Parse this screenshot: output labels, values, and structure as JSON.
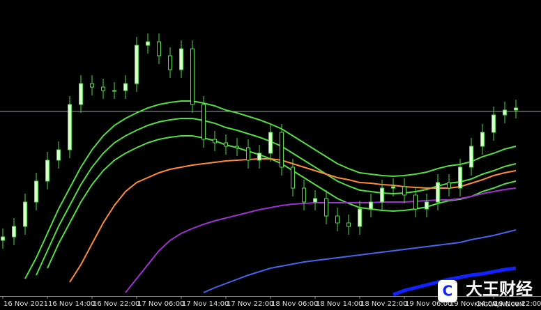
{
  "chart_data": {
    "type": "candlestick",
    "categories": [
      "16 Nov 2021",
      null,
      null,
      null,
      "16 Nov 14:00",
      null,
      null,
      null,
      "16 Nov 22:00",
      null,
      null,
      null,
      "17 Nov 06:00",
      null,
      null,
      null,
      "17 Nov 14:00",
      null,
      null,
      null,
      "17 Nov 22:00",
      null,
      null,
      null,
      "18 Nov 06:00",
      null,
      null,
      null,
      "18 Nov 14:00",
      null,
      null,
      null,
      "18 Nov 22:00",
      null,
      null,
      null,
      "19 Nov 06:00",
      null,
      null,
      null,
      "19 Nov 14:00",
      null,
      null,
      null,
      "19 Nov 22:00",
      null,
      null
    ],
    "open": [
      80,
      85,
      100,
      135,
      165,
      195,
      210,
      275,
      305,
      300,
      295,
      295,
      305,
      360,
      365,
      345,
      325,
      355,
      275,
      225,
      220,
      215,
      213,
      195,
      205,
      235,
      185,
      155,
      135,
      140,
      115,
      105,
      100,
      125,
      135,
      155,
      157,
      145,
      125,
      135,
      163,
      155,
      185,
      215,
      235,
      260,
      267
    ],
    "high": [
      97,
      112,
      147,
      177,
      207,
      222,
      287,
      317,
      317,
      312,
      307,
      317,
      372,
      377,
      377,
      357,
      367,
      367,
      287,
      237,
      232,
      227,
      225,
      217,
      247,
      247,
      197,
      167,
      152,
      152,
      127,
      117,
      137,
      147,
      167,
      169,
      169,
      157,
      147,
      175,
      175,
      197,
      227,
      247,
      272,
      279,
      282
    ],
    "low": [
      68,
      73,
      88,
      123,
      153,
      183,
      198,
      263,
      288,
      283,
      283,
      283,
      293,
      348,
      333,
      313,
      313,
      263,
      213,
      208,
      203,
      201,
      183,
      183,
      193,
      173,
      143,
      123,
      123,
      103,
      93,
      88,
      88,
      113,
      123,
      143,
      133,
      113,
      113,
      123,
      143,
      143,
      173,
      203,
      223,
      248,
      255
    ],
    "close": [
      85,
      100,
      135,
      165,
      195,
      210,
      275,
      305,
      300,
      295,
      295,
      305,
      360,
      365,
      345,
      325,
      355,
      275,
      225,
      220,
      215,
      213,
      195,
      205,
      235,
      185,
      155,
      135,
      140,
      115,
      105,
      100,
      125,
      135,
      155,
      157,
      145,
      125,
      135,
      163,
      155,
      185,
      215,
      235,
      260,
      267,
      270
    ],
    "up_color": "#d8ffd0",
    "down_color": "#000000",
    "wick_color": "#55dd44",
    "series": [
      {
        "color": "#55dd44",
        "width": 2,
        "values": [
          null,
          null,
          25,
          55,
          90,
          125,
          155,
          185,
          210,
          230,
          245,
          255,
          263,
          270,
          275,
          278,
          280,
          280,
          277,
          273,
          267,
          263,
          258,
          253,
          247,
          240,
          230,
          220,
          210,
          200,
          190,
          183,
          177,
          175,
          173,
          172,
          173,
          175,
          178,
          183,
          187,
          189,
          193,
          200,
          205,
          211,
          215
        ]
      },
      {
        "color": "#55dd44",
        "width": 2,
        "values": [
          null,
          null,
          null,
          30,
          65,
          100,
          130,
          160,
          185,
          205,
          220,
          230,
          238,
          245,
          250,
          253,
          255,
          255,
          252,
          248,
          242,
          238,
          233,
          228,
          222,
          215,
          205,
          195,
          185,
          175,
          165,
          158,
          152,
          150,
          148,
          147,
          148,
          150,
          153,
          158,
          162,
          164,
          168,
          175,
          180,
          186,
          190
        ]
      },
      {
        "color": "#55dd44",
        "width": 2,
        "values": [
          null,
          null,
          null,
          null,
          40,
          75,
          105,
          135,
          160,
          180,
          195,
          205,
          213,
          220,
          225,
          228,
          230,
          230,
          227,
          223,
          217,
          213,
          208,
          203,
          197,
          190,
          180,
          170,
          160,
          150,
          140,
          133,
          127,
          125,
          123,
          122,
          123,
          125,
          128,
          133,
          137,
          139,
          143,
          150,
          155,
          161,
          165
        ]
      },
      {
        "color": "#ff8c3a",
        "width": 2,
        "values": [
          null,
          null,
          null,
          null,
          null,
          null,
          20,
          45,
          75,
          105,
          130,
          150,
          163,
          170,
          177,
          182,
          185,
          188,
          190,
          192,
          194,
          195,
          196,
          197,
          197,
          195,
          190,
          185,
          180,
          175,
          170,
          167,
          163,
          162,
          160,
          159,
          157,
          156,
          155,
          155,
          155,
          157,
          162,
          167,
          173,
          177,
          180
        ]
      },
      {
        "color": "#a030d0",
        "width": 2,
        "values": [
          null,
          null,
          null,
          null,
          null,
          null,
          null,
          null,
          null,
          null,
          null,
          5,
          25,
          45,
          65,
          80,
          90,
          97,
          103,
          108,
          112,
          116,
          120,
          124,
          127,
          130,
          132,
          133,
          134,
          134,
          134,
          134,
          134,
          134,
          135,
          135,
          135,
          136,
          137,
          138,
          138,
          140,
          143,
          147,
          150,
          153,
          155
        ]
      },
      {
        "color": "#4466ee",
        "width": 2,
        "values": [
          null,
          null,
          null,
          null,
          null,
          null,
          null,
          null,
          null,
          null,
          null,
          null,
          null,
          null,
          null,
          null,
          null,
          null,
          5,
          12,
          18,
          24,
          30,
          35,
          40,
          43,
          46,
          49,
          51,
          53,
          55,
          57,
          59,
          61,
          63,
          65,
          67,
          69,
          71,
          73,
          75,
          77,
          81,
          84,
          87,
          91,
          95
        ]
      },
      {
        "color": "#1122ff",
        "width": 5,
        "values": [
          null,
          null,
          null,
          null,
          null,
          null,
          null,
          null,
          null,
          null,
          null,
          null,
          null,
          null,
          null,
          null,
          null,
          null,
          null,
          null,
          null,
          null,
          null,
          null,
          null,
          null,
          null,
          null,
          null,
          null,
          null,
          null,
          null,
          null,
          null,
          2,
          8,
          12,
          16,
          20,
          24,
          27,
          30,
          32,
          35,
          38,
          40
        ]
      }
    ],
    "price_line": 265,
    "ylim": [
      0,
      425
    ],
    "watermark": "大王财经",
    "watermark_url": "KINGCAIJING.COM"
  }
}
